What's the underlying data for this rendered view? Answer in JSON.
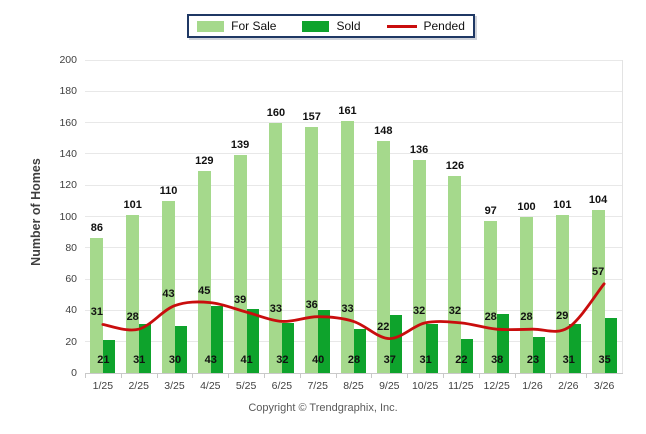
{
  "chart_data": {
    "type": "bar",
    "title": "",
    "categories": [
      "1/25",
      "2/25",
      "3/25",
      "4/25",
      "5/25",
      "6/25",
      "7/25",
      "8/25",
      "9/25",
      "10/25",
      "11/25",
      "12/25",
      "1/26",
      "2/26",
      "3/26"
    ],
    "series": [
      {
        "name": "For Sale",
        "type": "bar",
        "color": "#a5d98c",
        "values": [
          86,
          101,
          110,
          129,
          139,
          160,
          157,
          161,
          148,
          136,
          126,
          97,
          100,
          101,
          104
        ]
      },
      {
        "name": "Sold",
        "type": "bar",
        "color": "#0ea32c",
        "values": [
          21,
          31,
          30,
          43,
          41,
          32,
          40,
          28,
          37,
          31,
          22,
          38,
          23,
          31,
          35
        ]
      },
      {
        "name": "Pended",
        "type": "line",
        "color": "#c90d0d",
        "values": [
          31,
          28,
          43,
          45,
          39,
          33,
          36,
          33,
          22,
          32,
          32,
          28,
          28,
          29,
          57
        ]
      }
    ],
    "xlabel": "",
    "ylabel": "Number of Homes",
    "ylim": [
      0,
      200
    ],
    "ytick_step": 20,
    "grid": true,
    "legend_position": "top-center"
  },
  "footer": {
    "copyright": "Copyright © Trendgraphix, Inc."
  },
  "colors": {
    "grid": "#e8e8e8",
    "axis": "#c9c9c9",
    "tick_label": "#3f3f3f",
    "value_label": "#111111",
    "legend_border": "#1f3864"
  }
}
